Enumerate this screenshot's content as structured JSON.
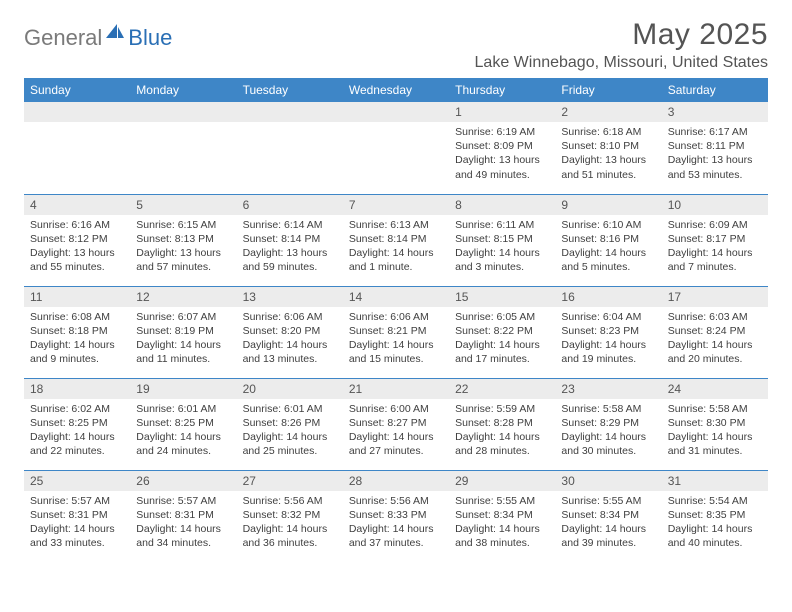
{
  "logo": {
    "part1": "General",
    "part2": "Blue"
  },
  "title": "May 2025",
  "location": "Lake Winnebago, Missouri, United States",
  "colors": {
    "header_bg": "#3e86c7",
    "header_text": "#ffffff",
    "daynum_bg": "#ececec",
    "border": "#3e86c7",
    "body_text": "#3f3f3f",
    "title_text": "#545454",
    "logo_gray": "#7a7a7a",
    "logo_blue": "#2a6fb5"
  },
  "weekdays": [
    "Sunday",
    "Monday",
    "Tuesday",
    "Wednesday",
    "Thursday",
    "Friday",
    "Saturday"
  ],
  "weeks": [
    [
      null,
      null,
      null,
      null,
      {
        "n": "1",
        "sr": "6:19 AM",
        "ss": "8:09 PM",
        "dl": "13 hours and 49 minutes."
      },
      {
        "n": "2",
        "sr": "6:18 AM",
        "ss": "8:10 PM",
        "dl": "13 hours and 51 minutes."
      },
      {
        "n": "3",
        "sr": "6:17 AM",
        "ss": "8:11 PM",
        "dl": "13 hours and 53 minutes."
      }
    ],
    [
      {
        "n": "4",
        "sr": "6:16 AM",
        "ss": "8:12 PM",
        "dl": "13 hours and 55 minutes."
      },
      {
        "n": "5",
        "sr": "6:15 AM",
        "ss": "8:13 PM",
        "dl": "13 hours and 57 minutes."
      },
      {
        "n": "6",
        "sr": "6:14 AM",
        "ss": "8:14 PM",
        "dl": "13 hours and 59 minutes."
      },
      {
        "n": "7",
        "sr": "6:13 AM",
        "ss": "8:14 PM",
        "dl": "14 hours and 1 minute."
      },
      {
        "n": "8",
        "sr": "6:11 AM",
        "ss": "8:15 PM",
        "dl": "14 hours and 3 minutes."
      },
      {
        "n": "9",
        "sr": "6:10 AM",
        "ss": "8:16 PM",
        "dl": "14 hours and 5 minutes."
      },
      {
        "n": "10",
        "sr": "6:09 AM",
        "ss": "8:17 PM",
        "dl": "14 hours and 7 minutes."
      }
    ],
    [
      {
        "n": "11",
        "sr": "6:08 AM",
        "ss": "8:18 PM",
        "dl": "14 hours and 9 minutes."
      },
      {
        "n": "12",
        "sr": "6:07 AM",
        "ss": "8:19 PM",
        "dl": "14 hours and 11 minutes."
      },
      {
        "n": "13",
        "sr": "6:06 AM",
        "ss": "8:20 PM",
        "dl": "14 hours and 13 minutes."
      },
      {
        "n": "14",
        "sr": "6:06 AM",
        "ss": "8:21 PM",
        "dl": "14 hours and 15 minutes."
      },
      {
        "n": "15",
        "sr": "6:05 AM",
        "ss": "8:22 PM",
        "dl": "14 hours and 17 minutes."
      },
      {
        "n": "16",
        "sr": "6:04 AM",
        "ss": "8:23 PM",
        "dl": "14 hours and 19 minutes."
      },
      {
        "n": "17",
        "sr": "6:03 AM",
        "ss": "8:24 PM",
        "dl": "14 hours and 20 minutes."
      }
    ],
    [
      {
        "n": "18",
        "sr": "6:02 AM",
        "ss": "8:25 PM",
        "dl": "14 hours and 22 minutes."
      },
      {
        "n": "19",
        "sr": "6:01 AM",
        "ss": "8:25 PM",
        "dl": "14 hours and 24 minutes."
      },
      {
        "n": "20",
        "sr": "6:01 AM",
        "ss": "8:26 PM",
        "dl": "14 hours and 25 minutes."
      },
      {
        "n": "21",
        "sr": "6:00 AM",
        "ss": "8:27 PM",
        "dl": "14 hours and 27 minutes."
      },
      {
        "n": "22",
        "sr": "5:59 AM",
        "ss": "8:28 PM",
        "dl": "14 hours and 28 minutes."
      },
      {
        "n": "23",
        "sr": "5:58 AM",
        "ss": "8:29 PM",
        "dl": "14 hours and 30 minutes."
      },
      {
        "n": "24",
        "sr": "5:58 AM",
        "ss": "8:30 PM",
        "dl": "14 hours and 31 minutes."
      }
    ],
    [
      {
        "n": "25",
        "sr": "5:57 AM",
        "ss": "8:31 PM",
        "dl": "14 hours and 33 minutes."
      },
      {
        "n": "26",
        "sr": "5:57 AM",
        "ss": "8:31 PM",
        "dl": "14 hours and 34 minutes."
      },
      {
        "n": "27",
        "sr": "5:56 AM",
        "ss": "8:32 PM",
        "dl": "14 hours and 36 minutes."
      },
      {
        "n": "28",
        "sr": "5:56 AM",
        "ss": "8:33 PM",
        "dl": "14 hours and 37 minutes."
      },
      {
        "n": "29",
        "sr": "5:55 AM",
        "ss": "8:34 PM",
        "dl": "14 hours and 38 minutes."
      },
      {
        "n": "30",
        "sr": "5:55 AM",
        "ss": "8:34 PM",
        "dl": "14 hours and 39 minutes."
      },
      {
        "n": "31",
        "sr": "5:54 AM",
        "ss": "8:35 PM",
        "dl": "14 hours and 40 minutes."
      }
    ]
  ],
  "labels": {
    "sunrise": "Sunrise:",
    "sunset": "Sunset:",
    "daylight": "Daylight:"
  }
}
